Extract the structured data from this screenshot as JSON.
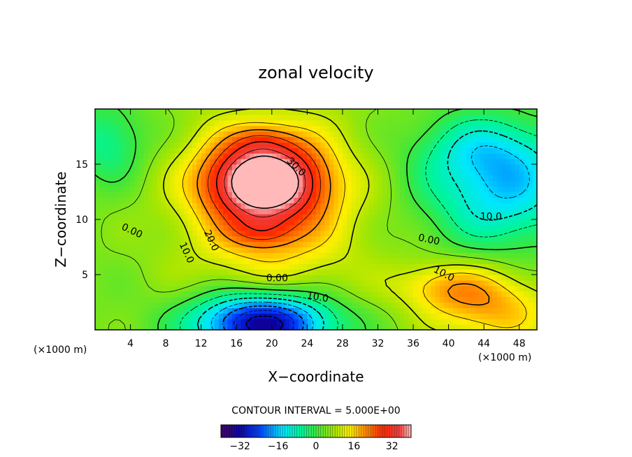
{
  "chart_data": {
    "type": "heatmap",
    "title": "zonal velocity",
    "xlabel": "X−coordinate",
    "ylabel": "Z−coordinate",
    "x_unit": "(×1000 m)",
    "y_unit": "(×1000 m)",
    "xlim": [
      0,
      50
    ],
    "ylim": [
      0,
      20
    ],
    "x_ticks": [
      4,
      8,
      12,
      16,
      20,
      24,
      28,
      32,
      36,
      40,
      44,
      48
    ],
    "y_ticks": [
      5,
      10,
      15
    ],
    "x_tick_labels": [
      "4",
      "8",
      "12",
      "16",
      "20",
      "24",
      "28",
      "32",
      "36",
      "40",
      "44",
      "48"
    ],
    "y_tick_labels": [
      "5",
      "10",
      "15"
    ],
    "contour_interval_text": "CONTOUR INTERVAL = 5.000E+00",
    "colorbar": {
      "range": [
        -40,
        40
      ],
      "ticks": [
        -32,
        -16,
        0,
        16,
        32
      ],
      "tick_labels": [
        "−32",
        "−16",
        "0",
        "16",
        "32"
      ]
    },
    "features": [
      {
        "kind": "max",
        "x": 19,
        "z": 13.5,
        "value": 36,
        "sx": 4.5,
        "sz": 2.4
      },
      {
        "kind": "max",
        "x": 19,
        "z": 8.9,
        "value": 8,
        "sx": 2.6,
        "sz": 1.1
      },
      {
        "kind": "max",
        "x": 19,
        "z": 17.2,
        "value": 6,
        "sx": 2.5,
        "sz": 1.0
      },
      {
        "kind": "jet",
        "x": 20,
        "z": 11,
        "value": 14,
        "sx": 7.5,
        "sz": 6.5
      },
      {
        "kind": "min",
        "x": 19,
        "z": 0.6,
        "value": -40,
        "sx": 5.5,
        "sz": 2.0
      },
      {
        "kind": "min",
        "x": 46,
        "z": 12.5,
        "value": -18,
        "sx": 6.0,
        "sz": 3.5
      },
      {
        "kind": "min",
        "x": 44,
        "z": 16.5,
        "value": -10,
        "sx": 5.5,
        "sz": 2.2
      },
      {
        "kind": "min",
        "x": 1.5,
        "z": 17,
        "value": -10,
        "sx": 3.0,
        "sz": 2.5
      },
      {
        "kind": "max",
        "x": 45,
        "z": 2.0,
        "value": 14,
        "sx": 5.0,
        "sz": 2.5
      },
      {
        "kind": "max",
        "x": 39,
        "z": 4.0,
        "value": 10,
        "sx": 4.0,
        "sz": 1.6
      }
    ],
    "contour_labels": [
      {
        "text": "30.0",
        "x": 22.8,
        "z": 14.8,
        "angle": 45
      },
      {
        "text": "20.0",
        "x": 13.2,
        "z": 8.1,
        "angle": 65
      },
      {
        "text": "10.0",
        "x": 10.4,
        "z": 7.0,
        "angle": 65
      },
      {
        "text": "0.00",
        "x": 4.2,
        "z": 9.0,
        "angle": 25
      },
      {
        "text": "0.00",
        "x": 20.6,
        "z": 4.7,
        "angle": 0
      },
      {
        "text": "10.0",
        "x": 25.2,
        "z": 3.0,
        "angle": 10
      },
      {
        "text": "0.00",
        "x": 37.8,
        "z": 8.2,
        "angle": 12
      },
      {
        "text": "10.0",
        "x": 39.5,
        "z": 5.1,
        "angle": 28
      },
      {
        "text": "10.0",
        "x": 44.8,
        "z": 10.3,
        "angle": 0
      }
    ]
  }
}
